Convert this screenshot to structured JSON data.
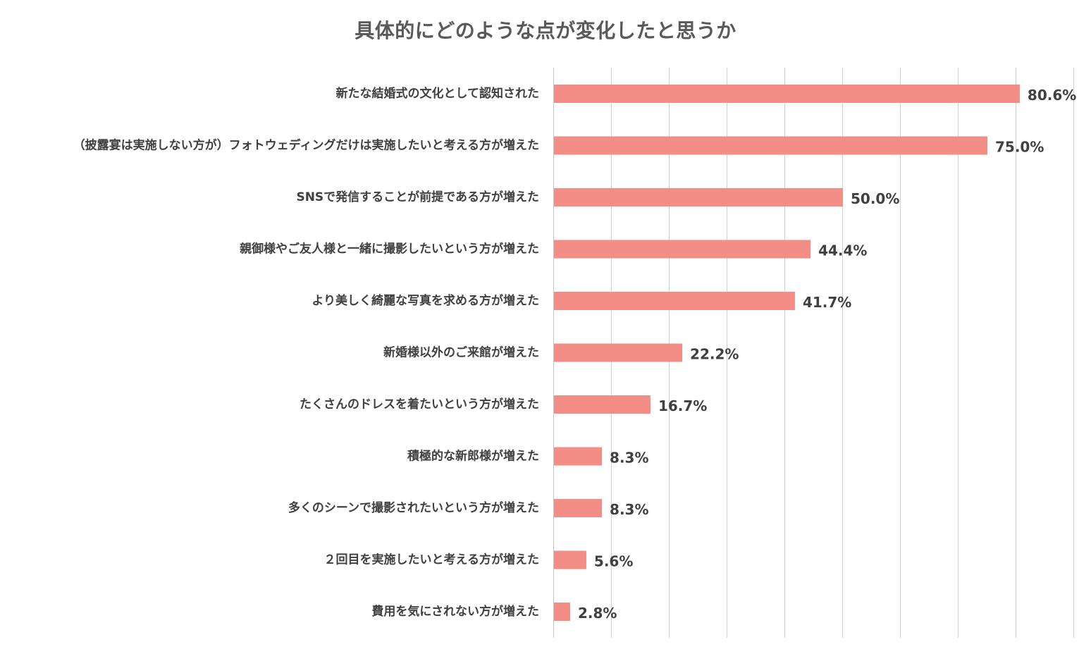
{
  "chart_data": {
    "type": "bar",
    "orientation": "horizontal",
    "title": "具体的にどのような点が変化したと思うか",
    "categories": [
      "新たな結婚式の文化として認知された",
      "（披露宴は実施しない方が）フォトウェディングだけは実施したいと考える方が増えた",
      "SNSで発信することが前提である方が増えた",
      "親御様やご友人様と一緒に撮影したいという方が増えた",
      "より美しく綺麗な写真を求める方が増えた",
      "新婚様以外のご来館が増えた",
      "たくさんのドレスを着たいという方が増えた",
      "積極的な新郎様が増えた",
      "多くのシーンで撮影されたいという方が増えた",
      "２回目を実施したいと考える方が増えた",
      "費用を気にされない方が増えた"
    ],
    "values": [
      80.6,
      75.0,
      50.0,
      44.4,
      41.7,
      22.2,
      16.7,
      8.3,
      8.3,
      5.6,
      2.8
    ],
    "value_labels": [
      "80.6%",
      "75.0%",
      "50.0%",
      "44.4%",
      "41.7%",
      "22.2%",
      "16.7%",
      "8.3%",
      "8.3%",
      "5.6%",
      "2.8%"
    ],
    "xlim": [
      0,
      90
    ],
    "grid": true,
    "grid_step": 10,
    "xlabel": "",
    "ylabel": "",
    "bar_color": "#f28e86"
  }
}
